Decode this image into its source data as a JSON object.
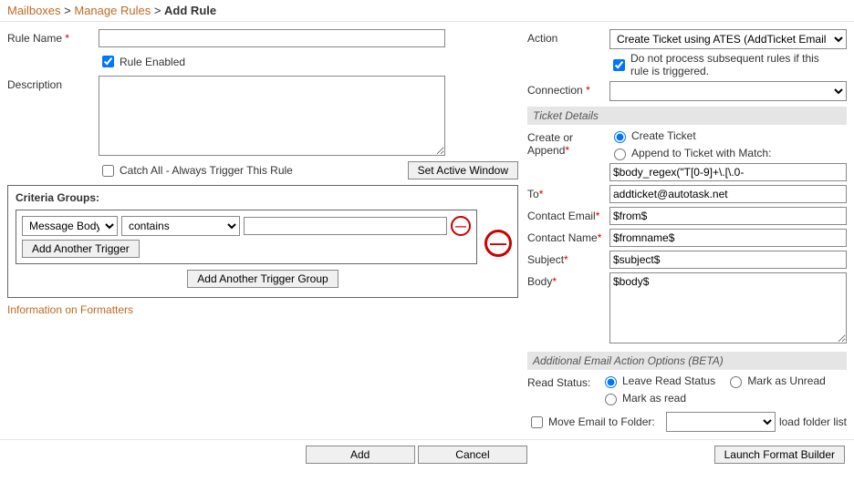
{
  "breadcrumb": {
    "mailboxes": "Mailboxes",
    "manage_rules": "Manage Rules",
    "current": "Add Rule",
    "sep": ">"
  },
  "left": {
    "rule_name_label": "Rule Name",
    "rule_name_value": "",
    "rule_enabled_label": "Rule Enabled",
    "rule_enabled_checked": true,
    "description_label": "Description",
    "description_value": "",
    "catch_all_label": "Catch All - Always Trigger This Rule",
    "catch_all_checked": false,
    "set_active_window_btn": "Set Active Window",
    "criteria_title": "Criteria Groups:",
    "trigger_field_options": [
      "Message Body"
    ],
    "trigger_field_selected": "Message Body",
    "trigger_op_options": [
      "contains"
    ],
    "trigger_op_selected": "contains",
    "trigger_value": "",
    "add_trigger_btn": "Add Another Trigger",
    "add_group_btn": "Add Another Trigger Group",
    "info_link": "Information on Formatters"
  },
  "right": {
    "action_label": "Action",
    "action_options": [
      "Create Ticket using ATES (AddTicket Email Servic"
    ],
    "action_selected": "Create Ticket using ATES (AddTicket Email Servic",
    "stop_processing_label": "Do not process subsequent rules if this rule is triggered.",
    "stop_processing_checked": true,
    "connection_label": "Connection",
    "connection_options": [
      ""
    ],
    "connection_selected": "",
    "ticket_details_title": "Ticket Details",
    "create_append_label": "Create or Append",
    "create_ticket_label": "Create Ticket",
    "append_label": "Append to Ticket with Match:",
    "append_value": "$body_regex(\"T[0-9]+\\.[\\.0-",
    "create_or_append_selected": "create",
    "to_label": "To",
    "to_value": "addticket@autotask.net",
    "contact_email_label": "Contact Email",
    "contact_email_value": "$from$",
    "contact_name_label": "Contact Name",
    "contact_name_value": "$fromname$",
    "subject_label": "Subject",
    "subject_value": "$subject$",
    "body_label": "Body",
    "body_value": "$body$",
    "additional_title": "Additional Email Action Options (BETA)",
    "read_status_label": "Read Status:",
    "leave_label": "Leave Read Status",
    "unread_label": "Mark as Unread",
    "read_label": "Mark as read",
    "read_status_selected": "leave",
    "move_folder_label": "Move Email to Folder:",
    "move_folder_checked": false,
    "folder_options": [
      ""
    ],
    "folder_selected": "",
    "load_folder_link": "load folder list"
  },
  "footer": {
    "add": "Add",
    "cancel": "Cancel",
    "launch": "Launch Format Builder"
  }
}
